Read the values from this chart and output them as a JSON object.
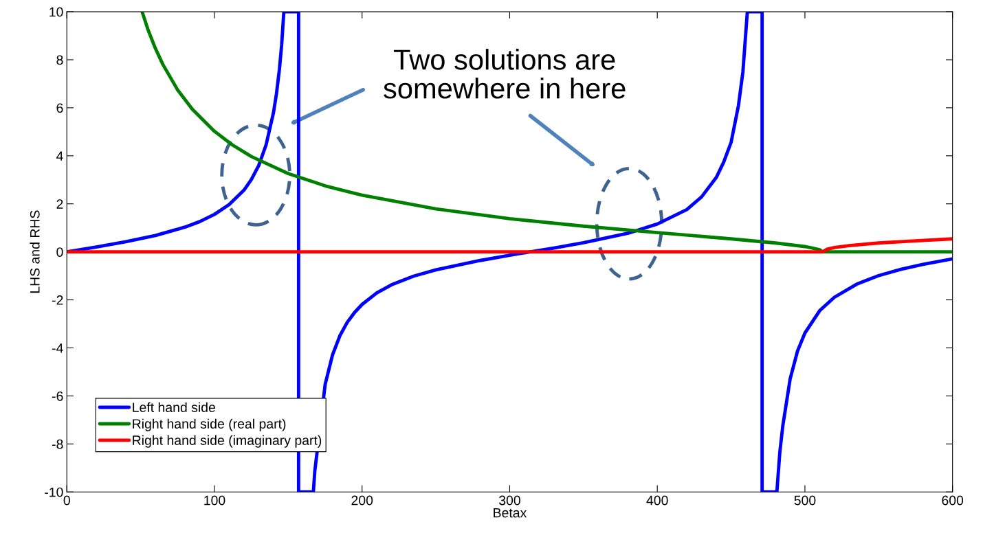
{
  "chart_data": {
    "type": "line",
    "xlabel": "Betax",
    "ylabel": "LHS and RHS",
    "xlim": [
      0,
      600
    ],
    "xticks": [
      0,
      100,
      200,
      300,
      400,
      500,
      600
    ],
    "ylim": [
      -10,
      10
    ],
    "yticks": [
      -10,
      -8,
      -6,
      -4,
      -2,
      0,
      2,
      4,
      6,
      8,
      10
    ],
    "grid": false,
    "legend": "bottom left",
    "marker": "none",
    "line_style": "solid",
    "annotations": [
      "Two solutions are\nsomewhere in here"
    ],
    "series": [
      {
        "name": "Left hand side",
        "color": "#0000ff",
        "x": [
          0,
          20,
          40,
          60,
          80,
          90,
          100,
          110,
          120,
          125,
          130,
          135,
          140,
          142,
          144,
          145.5,
          147,
          157,
          157,
          167,
          168,
          175,
          180,
          185,
          190,
          195,
          200,
          210,
          220,
          235,
          250,
          280,
          300,
          314,
          330,
          350,
          380,
          400,
          420,
          430,
          440,
          445,
          450,
          455,
          458,
          461,
          471,
          471,
          481,
          483,
          485,
          490,
          495,
          500,
          510,
          520,
          535,
          550,
          565,
          580,
          600
        ],
        "values": [
          0,
          0.2,
          0.42,
          0.68,
          1.03,
          1.26,
          1.56,
          1.97,
          2.57,
          3.01,
          3.6,
          4.46,
          5.8,
          6.58,
          7.6,
          8.6,
          10,
          10,
          -10,
          -10,
          -9.12,
          -5.52,
          -4.29,
          -3.49,
          -2.93,
          -2.52,
          -2.19,
          -1.71,
          -1.37,
          -1.01,
          -0.75,
          -0.36,
          -0.14,
          0,
          0.16,
          0.38,
          0.77,
          1.16,
          1.76,
          2.29,
          3.1,
          3.74,
          4.56,
          6.1,
          7.5,
          10,
          10,
          -10,
          -10,
          -8.35,
          -7.26,
          -5.29,
          -4.13,
          -3.38,
          -2.45,
          -1.89,
          -1.35,
          -0.99,
          -0.73,
          -0.52,
          -0.29
        ]
      },
      {
        "name": "Right hand side (real part)",
        "color": "#008000",
        "x": [
          51,
          55,
          60,
          65,
          75,
          85,
          100,
          112,
          125,
          150,
          175,
          200,
          250,
          300,
          350,
          400,
          450,
          480,
          500,
          505,
          510,
          512,
          600
        ],
        "values": [
          10,
          9.25,
          8.47,
          7.81,
          6.75,
          5.94,
          5.02,
          4.46,
          3.97,
          3.26,
          2.75,
          2.36,
          1.79,
          1.38,
          1.07,
          0.8,
          0.54,
          0.37,
          0.22,
          0.16,
          0.09,
          0,
          0
        ]
      },
      {
        "name": "Right hand side (imaginary part)",
        "color": "#ff0000",
        "x": [
          0,
          512,
          515,
          520,
          530,
          550,
          575,
          600
        ],
        "values": [
          0,
          0,
          0.11,
          0.18,
          0.26,
          0.37,
          0.46,
          0.54
        ]
      }
    ]
  }
}
